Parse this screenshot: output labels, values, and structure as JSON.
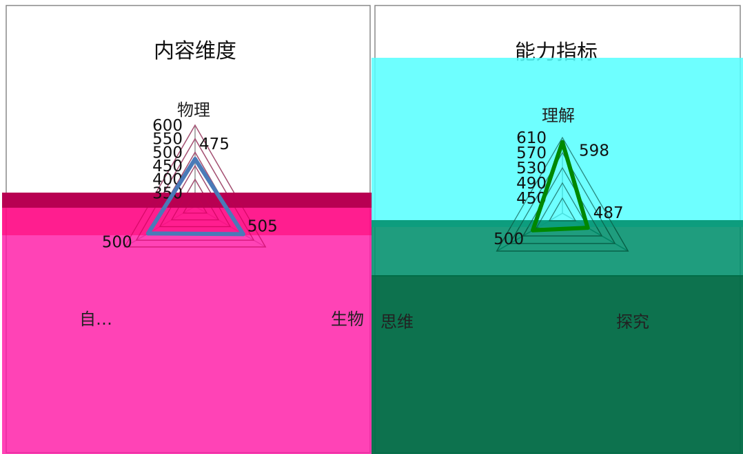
{
  "chart_data": [
    {
      "type": "radar",
      "title": "内容维度",
      "axes": [
        "物理",
        "生物",
        "自…"
      ],
      "ticks": [
        350,
        400,
        450,
        500,
        550,
        600
      ],
      "rlim": [
        300,
        600
      ],
      "series": [
        {
          "values": [
            475,
            505,
            500
          ],
          "color": "#4a7ab8"
        }
      ],
      "grid": true
    },
    {
      "type": "radar",
      "title": "能力指标",
      "axes": [
        "理解",
        "探究",
        "思维"
      ],
      "ticks": [
        450,
        490,
        530,
        570,
        610
      ],
      "rlim": [
        410,
        610
      ],
      "series": [
        {
          "values": [
            598,
            487,
            500
          ],
          "color": "#008800"
        }
      ],
      "grid": true
    }
  ],
  "overlays": {
    "left_color": "#ff1aa6",
    "left_band_color": "#c0004e",
    "right_top_color": "#55ffff",
    "right_mid_color": "#008f6c",
    "right_bottom_color": "#006a45"
  }
}
